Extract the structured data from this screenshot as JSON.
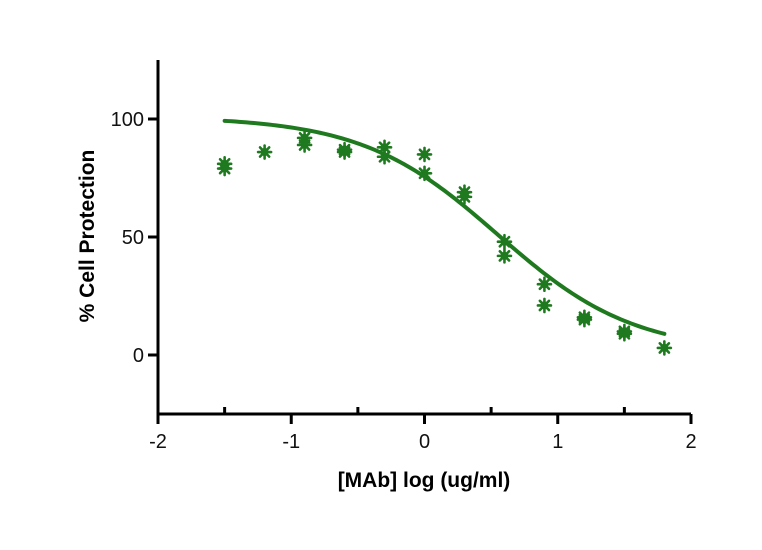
{
  "chart_data": {
    "type": "scatter",
    "title": "",
    "xlabel": "[MAb] log (ug/ml)",
    "ylabel": "% Cell Protection",
    "xlim": [
      -2,
      2
    ],
    "ylim": [
      -25,
      125
    ],
    "x_ticks": [
      -2,
      -1,
      0,
      1,
      2
    ],
    "y_ticks": [
      0,
      50,
      100
    ],
    "x_minor_ticks": [
      -1.5,
      -0.5,
      0.5,
      1.5
    ],
    "grid": false,
    "legend": "none",
    "color": "#1f7a1f",
    "series": [
      {
        "type": "scatter",
        "points": [
          {
            "x": -1.5,
            "y": 81
          },
          {
            "x": -1.5,
            "y": 79
          },
          {
            "x": -1.2,
            "y": 86
          },
          {
            "x": -0.9,
            "y": 92
          },
          {
            "x": -0.9,
            "y": 89
          },
          {
            "x": -0.6,
            "y": 87
          },
          {
            "x": -0.6,
            "y": 86
          },
          {
            "x": -0.3,
            "y": 88
          },
          {
            "x": -0.3,
            "y": 84
          },
          {
            "x": 0.0,
            "y": 85
          },
          {
            "x": 0.0,
            "y": 77
          },
          {
            "x": 0.3,
            "y": 69
          },
          {
            "x": 0.3,
            "y": 67
          },
          {
            "x": 0.6,
            "y": 48
          },
          {
            "x": 0.6,
            "y": 42
          },
          {
            "x": 0.9,
            "y": 30
          },
          {
            "x": 0.9,
            "y": 21
          },
          {
            "x": 1.2,
            "y": 16
          },
          {
            "x": 1.2,
            "y": 15
          },
          {
            "x": 1.5,
            "y": 10
          },
          {
            "x": 1.5,
            "y": 9
          },
          {
            "x": 1.8,
            "y": 3
          }
        ]
      },
      {
        "type": "line",
        "fit": "four-parameter logistic",
        "top": 101,
        "bottom": 1,
        "log_ec50": 0.55,
        "hill_slope": -0.85,
        "x_range": [
          -1.5,
          1.8
        ]
      }
    ]
  }
}
